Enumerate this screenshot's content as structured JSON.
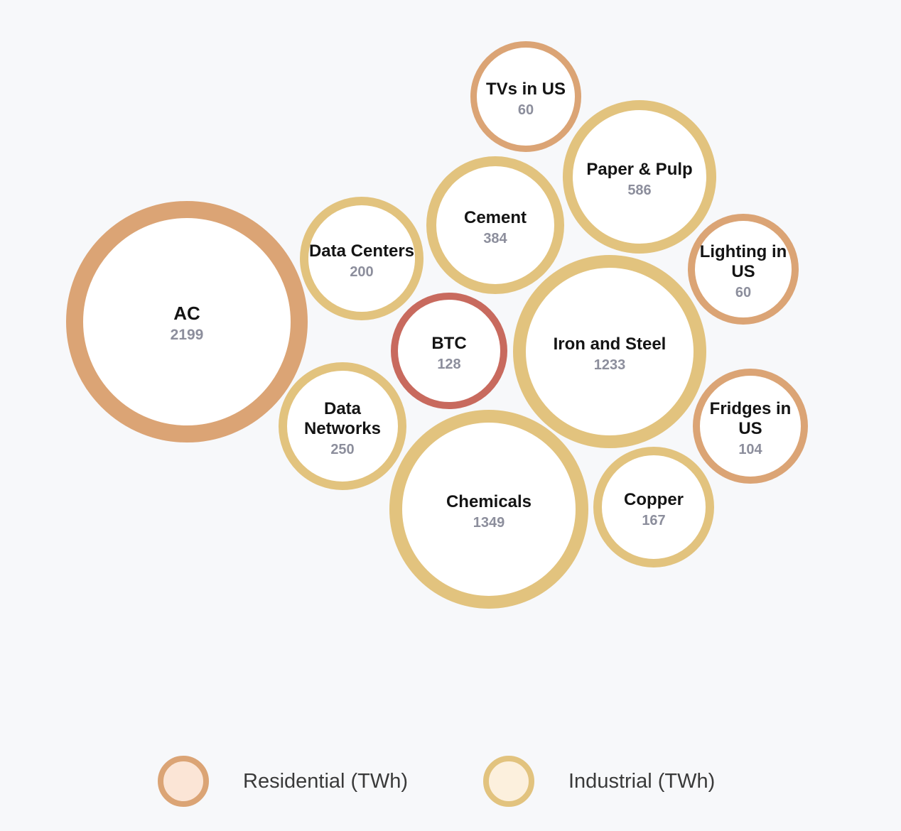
{
  "chart_data": {
    "type": "bubble",
    "unit": "TWh",
    "categories_legend": [
      {
        "key": "residential",
        "label": "Residential (TWh)",
        "ring": "#dba475",
        "fill": "#fbe5d6"
      },
      {
        "key": "industrial",
        "label": "Industrial (TWh)",
        "ring": "#e2c37e",
        "fill": "#fcf0dd"
      }
    ],
    "highlight_color": "#c86a5e",
    "bubbles": [
      {
        "id": "ac",
        "label": [
          "AC"
        ],
        "value": 2199,
        "category": "residential"
      },
      {
        "id": "tvs",
        "label": [
          "TVs in US"
        ],
        "value": 60,
        "category": "residential"
      },
      {
        "id": "paper",
        "label": [
          "Paper & Pulp"
        ],
        "value": 586,
        "category": "industrial"
      },
      {
        "id": "cement",
        "label": [
          "Cement"
        ],
        "value": 384,
        "category": "industrial"
      },
      {
        "id": "datacenters",
        "label": [
          "Data Centers"
        ],
        "value": 200,
        "category": "industrial"
      },
      {
        "id": "lighting",
        "label": [
          "Lighting in",
          "US"
        ],
        "value": 60,
        "category": "residential"
      },
      {
        "id": "btc",
        "label": [
          "BTC"
        ],
        "value": 128,
        "category": "highlight"
      },
      {
        "id": "iron",
        "label": [
          "Iron and Steel"
        ],
        "value": 1233,
        "category": "industrial"
      },
      {
        "id": "datanetworks",
        "label": [
          "Data",
          "Networks"
        ],
        "value": 250,
        "category": "industrial"
      },
      {
        "id": "fridges",
        "label": [
          "Fridges in",
          "US"
        ],
        "value": 104,
        "category": "residential"
      },
      {
        "id": "chemicals",
        "label": [
          "Chemicals"
        ],
        "value": 1349,
        "category": "industrial"
      },
      {
        "id": "copper",
        "label": [
          "Copper"
        ],
        "value": 167,
        "category": "industrial"
      }
    ]
  }
}
